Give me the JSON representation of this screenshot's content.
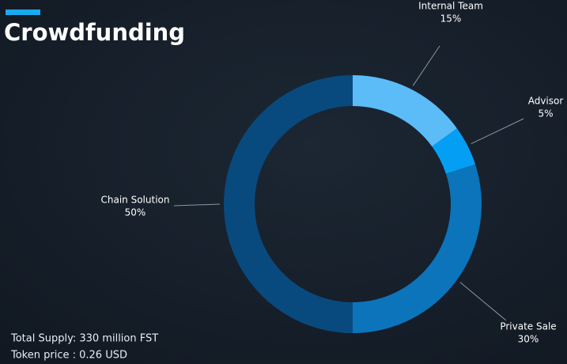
{
  "chart_data": {
    "type": "donut",
    "title": "Crowdfunding",
    "categories": [
      "Internal Team",
      "Advisor",
      "Private Sale",
      "Chain Solution"
    ],
    "values": [
      15,
      5,
      30,
      50
    ],
    "value_labels": [
      "15%",
      "5%",
      "30%",
      "50%"
    ],
    "colors": [
      "#5bbcf8",
      "#049ff5",
      "#0b74bb",
      "#084a7e"
    ],
    "annotations": [
      "Total Supply: 330 million FST",
      "Token price : 0.26 USD"
    ]
  }
}
